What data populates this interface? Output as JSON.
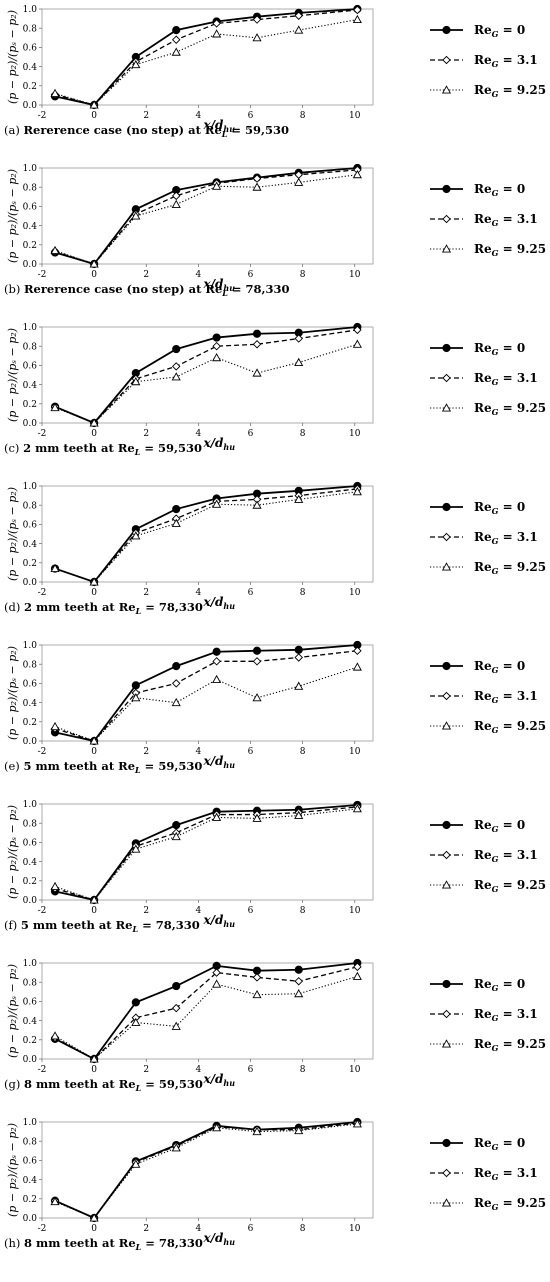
{
  "common": {
    "ylabel": "(p − p₂)/(pₛ − p₂)",
    "xlabel": "x/d_hu",
    "xticks": [
      -2,
      0,
      2,
      4,
      6,
      8,
      10
    ],
    "yticks": [
      0.0,
      0.2,
      0.4,
      0.6,
      0.8,
      1.0
    ],
    "xlim": [
      -2,
      10.7
    ],
    "ylim": [
      0,
      1.0
    ],
    "x": [
      -1.5,
      0,
      1.6,
      3.15,
      4.7,
      6.25,
      7.85,
      10.1
    ],
    "legend_entries": [
      {
        "label": "Re",
        "sub": "G",
        "value": " = 0",
        "marker": "filled-circle",
        "line": "solid"
      },
      {
        "label": "Re",
        "sub": "G",
        "value": " = 3.1",
        "marker": "open-diamond",
        "line": "dashed"
      },
      {
        "label": "Re",
        "sub": "G",
        "value": " = 9.25",
        "marker": "open-triangle",
        "line": "dotted"
      }
    ]
  },
  "chart_data": [
    {
      "type": "line",
      "caption_letter": "(a)",
      "caption_text": "Rererence case (no step) at Re",
      "caption_sub": "L",
      "caption_value": " = 59,530",
      "x": [
        -1.5,
        0,
        1.6,
        3.15,
        4.7,
        6.25,
        7.85,
        10.1
      ],
      "series": [
        {
          "name": "Re_G = 0",
          "values": [
            0.09,
            0.0,
            0.5,
            0.78,
            0.87,
            0.92,
            0.96,
            1.0
          ]
        },
        {
          "name": "Re_G = 3.1",
          "values": [
            0.11,
            0.0,
            0.45,
            0.68,
            0.85,
            0.89,
            0.93,
            0.99
          ]
        },
        {
          "name": "Re_G = 9.25",
          "values": [
            0.12,
            0.0,
            0.42,
            0.55,
            0.74,
            0.7,
            0.78,
            0.89
          ]
        }
      ]
    },
    {
      "type": "line",
      "caption_letter": "(b)",
      "caption_text": "Rererence case (no step) at Re",
      "caption_sub": "L",
      "caption_value": " = 78,330",
      "x": [
        -1.5,
        0,
        1.6,
        3.15,
        4.7,
        6.25,
        7.85,
        10.1
      ],
      "series": [
        {
          "name": "Re_G = 0",
          "values": [
            0.12,
            0.0,
            0.57,
            0.77,
            0.85,
            0.9,
            0.95,
            1.0
          ]
        },
        {
          "name": "Re_G = 3.1",
          "values": [
            0.13,
            0.0,
            0.52,
            0.71,
            0.84,
            0.89,
            0.93,
            0.98
          ]
        },
        {
          "name": "Re_G = 9.25",
          "values": [
            0.14,
            0.0,
            0.5,
            0.62,
            0.81,
            0.8,
            0.85,
            0.93
          ]
        }
      ]
    },
    {
      "type": "line",
      "caption_letter": "(c)",
      "caption_text": "2 mm teeth at Re",
      "caption_sub": "L",
      "caption_value": " = 59,530",
      "x": [
        -1.5,
        0,
        1.6,
        3.15,
        4.7,
        6.25,
        7.85,
        10.1
      ],
      "series": [
        {
          "name": "Re_G = 0",
          "values": [
            0.17,
            0.0,
            0.52,
            0.77,
            0.89,
            0.93,
            0.94,
            1.0
          ]
        },
        {
          "name": "Re_G = 3.1",
          "values": [
            0.17,
            0.0,
            0.46,
            0.59,
            0.8,
            0.82,
            0.88,
            0.97
          ]
        },
        {
          "name": "Re_G = 9.25",
          "values": [
            0.16,
            0.0,
            0.43,
            0.48,
            0.68,
            0.52,
            0.63,
            0.82
          ]
        }
      ]
    },
    {
      "type": "line",
      "caption_letter": "(d)",
      "caption_text": "2 mm teeth at Re",
      "caption_sub": "L",
      "caption_value": " = 78,330",
      "x": [
        -1.5,
        0,
        1.6,
        3.15,
        4.7,
        6.25,
        7.85,
        10.1
      ],
      "series": [
        {
          "name": "Re_G = 0",
          "values": [
            0.14,
            0.0,
            0.55,
            0.76,
            0.87,
            0.92,
            0.95,
            1.0
          ]
        },
        {
          "name": "Re_G = 3.1",
          "values": [
            0.14,
            0.0,
            0.51,
            0.66,
            0.84,
            0.86,
            0.9,
            0.97
          ]
        },
        {
          "name": "Re_G = 9.25",
          "values": [
            0.14,
            0.0,
            0.48,
            0.61,
            0.81,
            0.8,
            0.86,
            0.94
          ]
        }
      ]
    },
    {
      "type": "line",
      "caption_letter": "(e)",
      "caption_text": "5 mm teeth at Re",
      "caption_sub": "L",
      "caption_value": " = 59,530",
      "x": [
        -1.5,
        0,
        1.6,
        3.15,
        4.7,
        6.25,
        7.85,
        10.1
      ],
      "series": [
        {
          "name": "Re_G = 0",
          "values": [
            0.09,
            0.0,
            0.58,
            0.78,
            0.93,
            0.94,
            0.95,
            1.0
          ]
        },
        {
          "name": "Re_G = 3.1",
          "values": [
            0.13,
            0.0,
            0.5,
            0.6,
            0.83,
            0.83,
            0.87,
            0.94
          ]
        },
        {
          "name": "Re_G = 9.25",
          "values": [
            0.15,
            0.0,
            0.45,
            0.4,
            0.64,
            0.45,
            0.57,
            0.77
          ]
        }
      ]
    },
    {
      "type": "line",
      "caption_letter": "(f)",
      "caption_text": "5 mm teeth at Re",
      "caption_sub": "L",
      "caption_value": " = 78,330",
      "x": [
        -1.5,
        0,
        1.6,
        3.15,
        4.7,
        6.25,
        7.85,
        10.1
      ],
      "series": [
        {
          "name": "Re_G = 0",
          "values": [
            0.09,
            0.0,
            0.59,
            0.78,
            0.92,
            0.93,
            0.94,
            0.99
          ]
        },
        {
          "name": "Re_G = 3.1",
          "values": [
            0.12,
            0.0,
            0.56,
            0.7,
            0.89,
            0.89,
            0.91,
            0.97
          ]
        },
        {
          "name": "Re_G = 9.25",
          "values": [
            0.14,
            0.0,
            0.53,
            0.66,
            0.86,
            0.85,
            0.88,
            0.95
          ]
        }
      ]
    },
    {
      "type": "line",
      "caption_letter": "(g)",
      "caption_text": "8 mm teeth at Re",
      "caption_sub": "L",
      "caption_value": " = 59,530",
      "x": [
        -1.5,
        0,
        1.6,
        3.15,
        4.7,
        6.25,
        7.85,
        10.1
      ],
      "series": [
        {
          "name": "Re_G = 0",
          "values": [
            0.21,
            0.0,
            0.59,
            0.76,
            0.97,
            0.92,
            0.93,
            1.0
          ]
        },
        {
          "name": "Re_G = 3.1",
          "values": [
            0.22,
            0.0,
            0.43,
            0.53,
            0.9,
            0.85,
            0.81,
            0.96
          ]
        },
        {
          "name": "Re_G = 9.25",
          "values": [
            0.24,
            0.0,
            0.38,
            0.34,
            0.78,
            0.67,
            0.68,
            0.86
          ]
        }
      ]
    },
    {
      "type": "line",
      "caption_letter": "(h)",
      "caption_text": "8 mm teeth at Re",
      "caption_sub": "L",
      "caption_value": " = 78,330",
      "x": [
        -1.5,
        0,
        1.6,
        3.15,
        4.7,
        6.25,
        7.85,
        10.1
      ],
      "series": [
        {
          "name": "Re_G = 0",
          "values": [
            0.18,
            0.0,
            0.59,
            0.76,
            0.96,
            0.92,
            0.94,
            1.0
          ]
        },
        {
          "name": "Re_G = 3.1",
          "values": [
            0.18,
            0.0,
            0.58,
            0.75,
            0.95,
            0.92,
            0.92,
            0.99
          ]
        },
        {
          "name": "Re_G = 9.25",
          "values": [
            0.17,
            0.0,
            0.56,
            0.73,
            0.94,
            0.9,
            0.91,
            0.98
          ]
        }
      ]
    }
  ]
}
